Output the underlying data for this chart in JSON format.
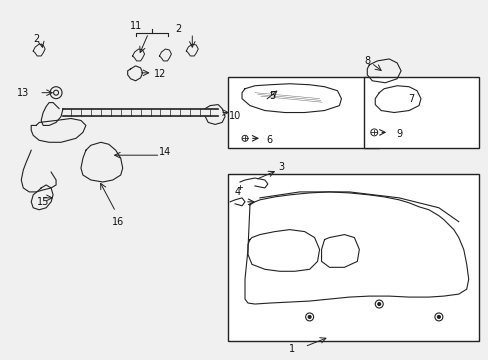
{
  "bg_color": "#f0f0f0",
  "line_color": "#222222",
  "figsize": [
    4.89,
    3.6
  ],
  "dpi": 100,
  "labels": [
    [
      "1",
      2.92,
      0.1
    ],
    [
      "2",
      0.35,
      3.22
    ],
    [
      "2",
      1.78,
      3.32
    ],
    [
      "3",
      2.82,
      1.93
    ],
    [
      "4",
      2.38,
      1.68
    ],
    [
      "5",
      2.72,
      2.65
    ],
    [
      "6",
      2.7,
      2.2
    ],
    [
      "7",
      4.12,
      2.62
    ],
    [
      "8",
      3.68,
      3.0
    ],
    [
      "9",
      4.0,
      2.26
    ],
    [
      "10",
      2.35,
      2.45
    ],
    [
      "11",
      1.35,
      3.35
    ],
    [
      "12",
      1.6,
      2.87
    ],
    [
      "13",
      0.22,
      2.68
    ],
    [
      "14",
      1.65,
      2.08
    ],
    [
      "15",
      0.42,
      1.58
    ],
    [
      "16",
      1.17,
      1.38
    ]
  ]
}
